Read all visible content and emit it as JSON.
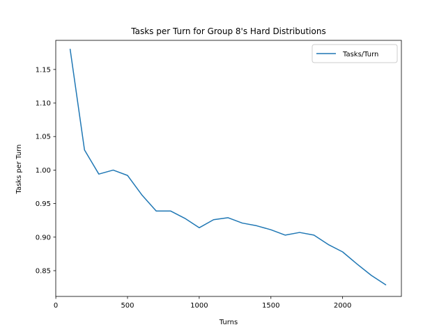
{
  "chart_data": {
    "type": "line",
    "title": "Tasks per Turn for Group 8's Hard Distributions",
    "xlabel": "Turns",
    "ylabel": "Tasks per Turn",
    "xlim": [
      -0.5,
      2410
    ],
    "ylim": [
      0.8116,
      1.1934
    ],
    "xticks": [
      0,
      500,
      1000,
      1500,
      2000
    ],
    "yticks": [
      0.85,
      0.9,
      0.95,
      1.0,
      1.05,
      1.1,
      1.15
    ],
    "grid": false,
    "legend_position": "top-right",
    "colors": {
      "series": "#1f77b4",
      "axes": "#000000",
      "legend_border": "#cccccc"
    },
    "series": [
      {
        "name": "Tasks/Turn",
        "x": [
          100,
          200,
          300,
          400,
          500,
          600,
          700,
          800,
          900,
          1000,
          1100,
          1200,
          1300,
          1400,
          1500,
          1600,
          1700,
          1800,
          1900,
          2000,
          2100,
          2200,
          2300
        ],
        "y": [
          1.18,
          1.03,
          0.994,
          1.0,
          0.992,
          0.963,
          0.939,
          0.939,
          0.928,
          0.914,
          0.926,
          0.929,
          0.921,
          0.917,
          0.911,
          0.903,
          0.907,
          0.903,
          0.889,
          0.878,
          0.86,
          0.843,
          0.829
        ]
      }
    ]
  }
}
